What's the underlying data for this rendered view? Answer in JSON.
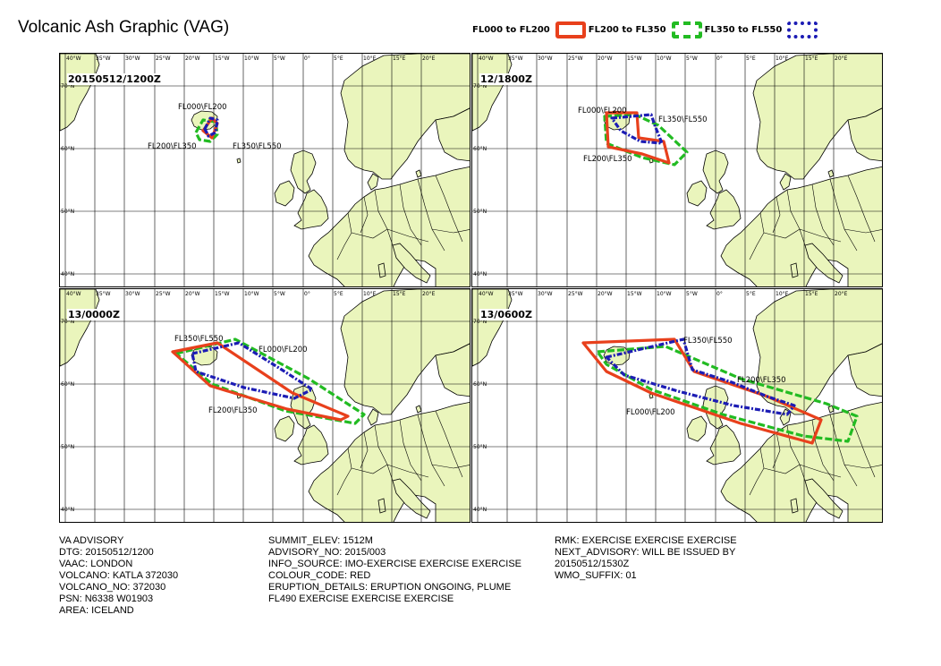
{
  "title": "Volcanic Ash Graphic (VAG)",
  "legend": [
    {
      "label": "FL000 to FL200",
      "color": "#e8401c",
      "style": "solid"
    },
    {
      "label": "FL200 to FL350",
      "color": "#22bb22",
      "style": "dashed"
    },
    {
      "label": "FL350 to FL550",
      "color": "#1c1cb4",
      "style": "dotted"
    }
  ],
  "map": {
    "land_color": "#eaf5bc",
    "sea_color": "#ffffff",
    "lon_ticks": [
      "40°W",
      "35°W",
      "30°W",
      "25°W",
      "20°W",
      "15°W",
      "10°W",
      "5°W",
      "0°",
      "5°E",
      "10°E",
      "15°E",
      "20°E"
    ],
    "lat_ticks": [
      "70°N",
      "60°N",
      "50°N",
      "40°N"
    ]
  },
  "panels": [
    {
      "time": "20150512/1200Z",
      "labels": {
        "red": "FL000\\FL200",
        "green": "FL200\\FL350",
        "blue": "FL350\\FL550"
      }
    },
    {
      "time": "12/1800Z",
      "labels": {
        "red": "FL000\\FL200",
        "green": "FL200\\FL350",
        "blue": "FL350\\FL550"
      }
    },
    {
      "time": "13/0000Z",
      "labels": {
        "red": "FL000\\FL200",
        "green": "FL200\\FL350",
        "blue": "FL350\\FL550"
      }
    },
    {
      "time": "13/0600Z",
      "labels": {
        "red": "FL000\\FL200",
        "green": "FL200\\FL350",
        "blue": "FL350\\FL550"
      }
    }
  ],
  "advisory": {
    "col1": [
      "VA ADVISORY",
      "DTG: 20150512/1200",
      "VAAC: LONDON",
      "VOLCANO: KATLA 372030",
      "VOLCANO_NO: 372030",
      "PSN: N6338 W01903",
      "AREA: ICELAND"
    ],
    "col2": [
      "SUMMIT_ELEV: 1512M",
      "ADVISORY_NO: 2015/003",
      "INFO_SOURCE: IMO-EXERCISE EXERCISE EXERCISE",
      "COLOUR_CODE: RED",
      "ERUPTION_DETAILS: ERUPTION ONGOING, PLUME",
      "FL490 EXERCISE EXERCISE EXERCISE"
    ],
    "col3": [
      "RMK: EXERCISE EXERCISE EXERCISE",
      "NEXT_ADVISORY: WILL BE ISSUED BY",
      "20150512/1530Z",
      "WMO_SUFFIX: 01"
    ]
  }
}
